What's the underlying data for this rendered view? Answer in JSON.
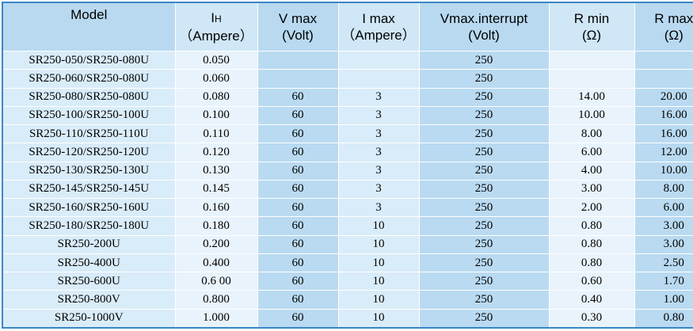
{
  "table": {
    "headers": [
      {
        "line1": "Model",
        "line2": ""
      },
      {
        "line1": "I",
        "sub": "H",
        "line2": "（Ampere）"
      },
      {
        "line1": "V max",
        "line2": "(Volt)"
      },
      {
        "line1": "I max",
        "line2": "（Ampere）"
      },
      {
        "line1": "Vmax.interrupt",
        "line2": "(Volt)"
      },
      {
        "line1": "R min",
        "line2": "(Ω)"
      },
      {
        "line1": "R max",
        "line2": "(Ω)"
      }
    ],
    "rows": [
      [
        "SR250-050/SR250-080U",
        "0.050",
        "",
        "",
        "250",
        "",
        ""
      ],
      [
        "SR250-060/SR250-080U",
        "0.060",
        "",
        "",
        "250",
        "",
        ""
      ],
      [
        "SR250-080/SR250-080U",
        "0.080",
        "60",
        "3",
        "250",
        "14.00",
        "20.00"
      ],
      [
        "SR250-100/SR250-100U",
        "0.100",
        "60",
        "3",
        "250",
        "10.00",
        "16.00"
      ],
      [
        "SR250-110/SR250-110U",
        "0.110",
        "60",
        "3",
        "250",
        "8.00",
        "16.00"
      ],
      [
        "SR250-120/SR250-120U",
        "0.120",
        "60",
        "3",
        "250",
        "6.00",
        "12.00"
      ],
      [
        "SR250-130/SR250-130U",
        "0.130",
        "60",
        "3",
        "250",
        "4.00",
        "10.00"
      ],
      [
        "SR250-145/SR250-145U",
        "0.145",
        "60",
        "3",
        "250",
        "3.00",
        "8.00"
      ],
      [
        "SR250-160/SR250-160U",
        "0.160",
        "60",
        "3",
        "250",
        "2.00",
        "6.00"
      ],
      [
        "SR250-180/SR250-180U",
        "0.180",
        "60",
        "10",
        "250",
        "0.80",
        "3.00"
      ],
      [
        "SR250-200U",
        "0.200",
        "60",
        "10",
        "250",
        "0.80",
        "3.00"
      ],
      [
        "SR250-400U",
        "0.400",
        "60",
        "10",
        "250",
        "0.80",
        "2.50"
      ],
      [
        "SR250-600U",
        "0.6 00",
        "60",
        "10",
        "250",
        "0.60",
        "1.70"
      ],
      [
        "SR250-800V",
        "0.800",
        "60",
        "10",
        "250",
        "0.40",
        "1.00"
      ],
      [
        "SR250-1000V",
        "1.000",
        "60",
        "10",
        "250",
        "0.30",
        "0.80"
      ]
    ]
  },
  "colors": {
    "border": "#3a86c6",
    "header_bg": "#b8d9f0",
    "cell_light": "#e8f3fb",
    "cell_mid": "#d9ecf9",
    "cell_dark": "#b9daf1"
  }
}
